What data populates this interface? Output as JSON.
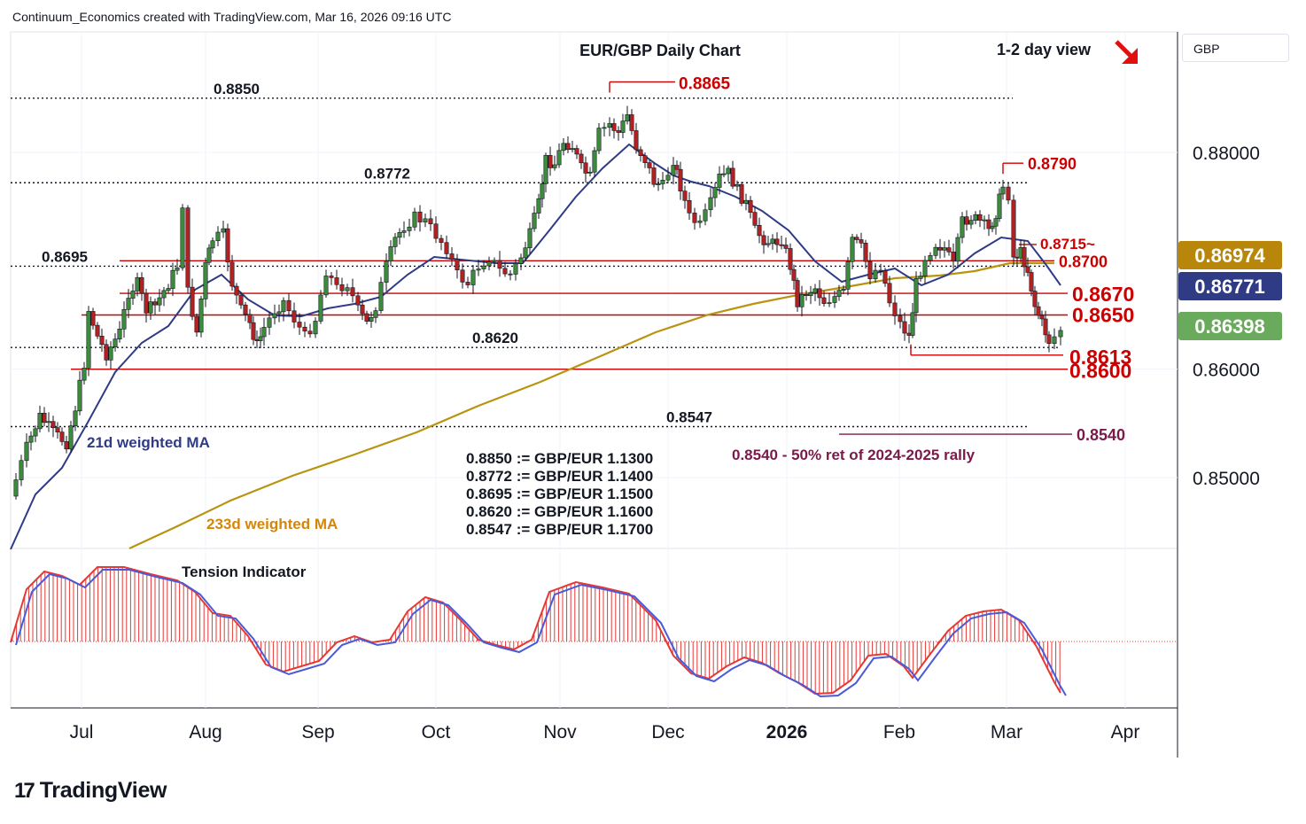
{
  "header": {
    "attribution": "Continuum_Economics created with TradingView.com, Mar 16, 2026 09:16 UTC",
    "currency": "GBP",
    "brand": "TradingView"
  },
  "chart_data": {
    "type": "candlestick",
    "title": "EUR/GBP Daily Chart",
    "view_label": "1-2 day view",
    "view_arrow": "down-right",
    "y_axis": {
      "range": [
        0.8442,
        0.8925
      ],
      "ticks": [
        {
          "value": 0.88,
          "label": "0.88000"
        },
        {
          "value": 0.86,
          "label": "0.86000"
        },
        {
          "value": 0.85,
          "label": "0.85000"
        }
      ]
    },
    "x_axis": {
      "ticks": [
        "Jul",
        "Aug",
        "Sep",
        "Oct",
        "Nov",
        "Dec",
        "2026",
        "Feb",
        "Mar",
        "Apr"
      ]
    },
    "price_badges": [
      {
        "value": 0.86974,
        "label": "0.86974",
        "color": "#b8860b",
        "series": "233d weighted MA"
      },
      {
        "value": 0.86771,
        "label": "0.86771",
        "color": "#2f3b85",
        "series": "21d weighted MA"
      },
      {
        "value": 0.86398,
        "label": "0.86398",
        "color": "#6aaa5d",
        "series": "Last price"
      }
    ],
    "levels": [
      {
        "value": 0.885,
        "label": "0.8850",
        "style": "dotted",
        "color": "#131722"
      },
      {
        "value": 0.8772,
        "label": "0.8772",
        "style": "dotted",
        "color": "#131722"
      },
      {
        "value": 0.8695,
        "label": "0.8695",
        "style": "dotted",
        "color": "#131722"
      },
      {
        "value": 0.862,
        "label": "0.8620",
        "style": "dotted",
        "color": "#131722"
      },
      {
        "value": 0.8547,
        "label": "0.8547",
        "style": "dotted",
        "color": "#131722"
      },
      {
        "value": 0.8865,
        "label": "0.8865",
        "style": "solid",
        "color": "#cc0000"
      },
      {
        "value": 0.879,
        "label": "0.8790",
        "style": "solid",
        "color": "#cc0000"
      },
      {
        "value": 0.8715,
        "label": "0.8715~",
        "style": "solid",
        "color": "#cc0000"
      },
      {
        "value": 0.87,
        "label": "0.8700",
        "style": "solid",
        "color": "#cc0000"
      },
      {
        "value": 0.867,
        "label": "0.8670",
        "style": "solid",
        "color": "#cc0000"
      },
      {
        "value": 0.865,
        "label": "0.8650",
        "style": "solid",
        "color": "#cc0000"
      },
      {
        "value": 0.8613,
        "label": "0.8613",
        "style": "solid",
        "color": "#cc0000"
      },
      {
        "value": 0.86,
        "label": "0.8600",
        "style": "solid",
        "color": "#cc0000"
      },
      {
        "value": 0.854,
        "label": "0.8540",
        "style": "solid",
        "color": "#7a1a4a"
      }
    ],
    "annotations": {
      "ma21": "21d weighted MA",
      "ma233": "233d weighted MA",
      "retracement": "0.8540 - 50% ret of 2024-2025 rally",
      "conversions": [
        "0.8850 := GBP/EUR 1.1300",
        "0.8772 := GBP/EUR 1.1400",
        "0.8695 := GBP/EUR 1.1500",
        "0.8620 := GBP/EUR 1.1600",
        "0.8547 := GBP/EUR 1.1700"
      ]
    },
    "indicator": {
      "name": "Tension Indicator",
      "colors": {
        "histogram": "#e53935",
        "signal": "#4a5ad8"
      }
    },
    "colors": {
      "up": "#3d8b3d",
      "down": "#b22222",
      "ma21": "#2f3b85",
      "ma233": "#b8940f"
    }
  }
}
